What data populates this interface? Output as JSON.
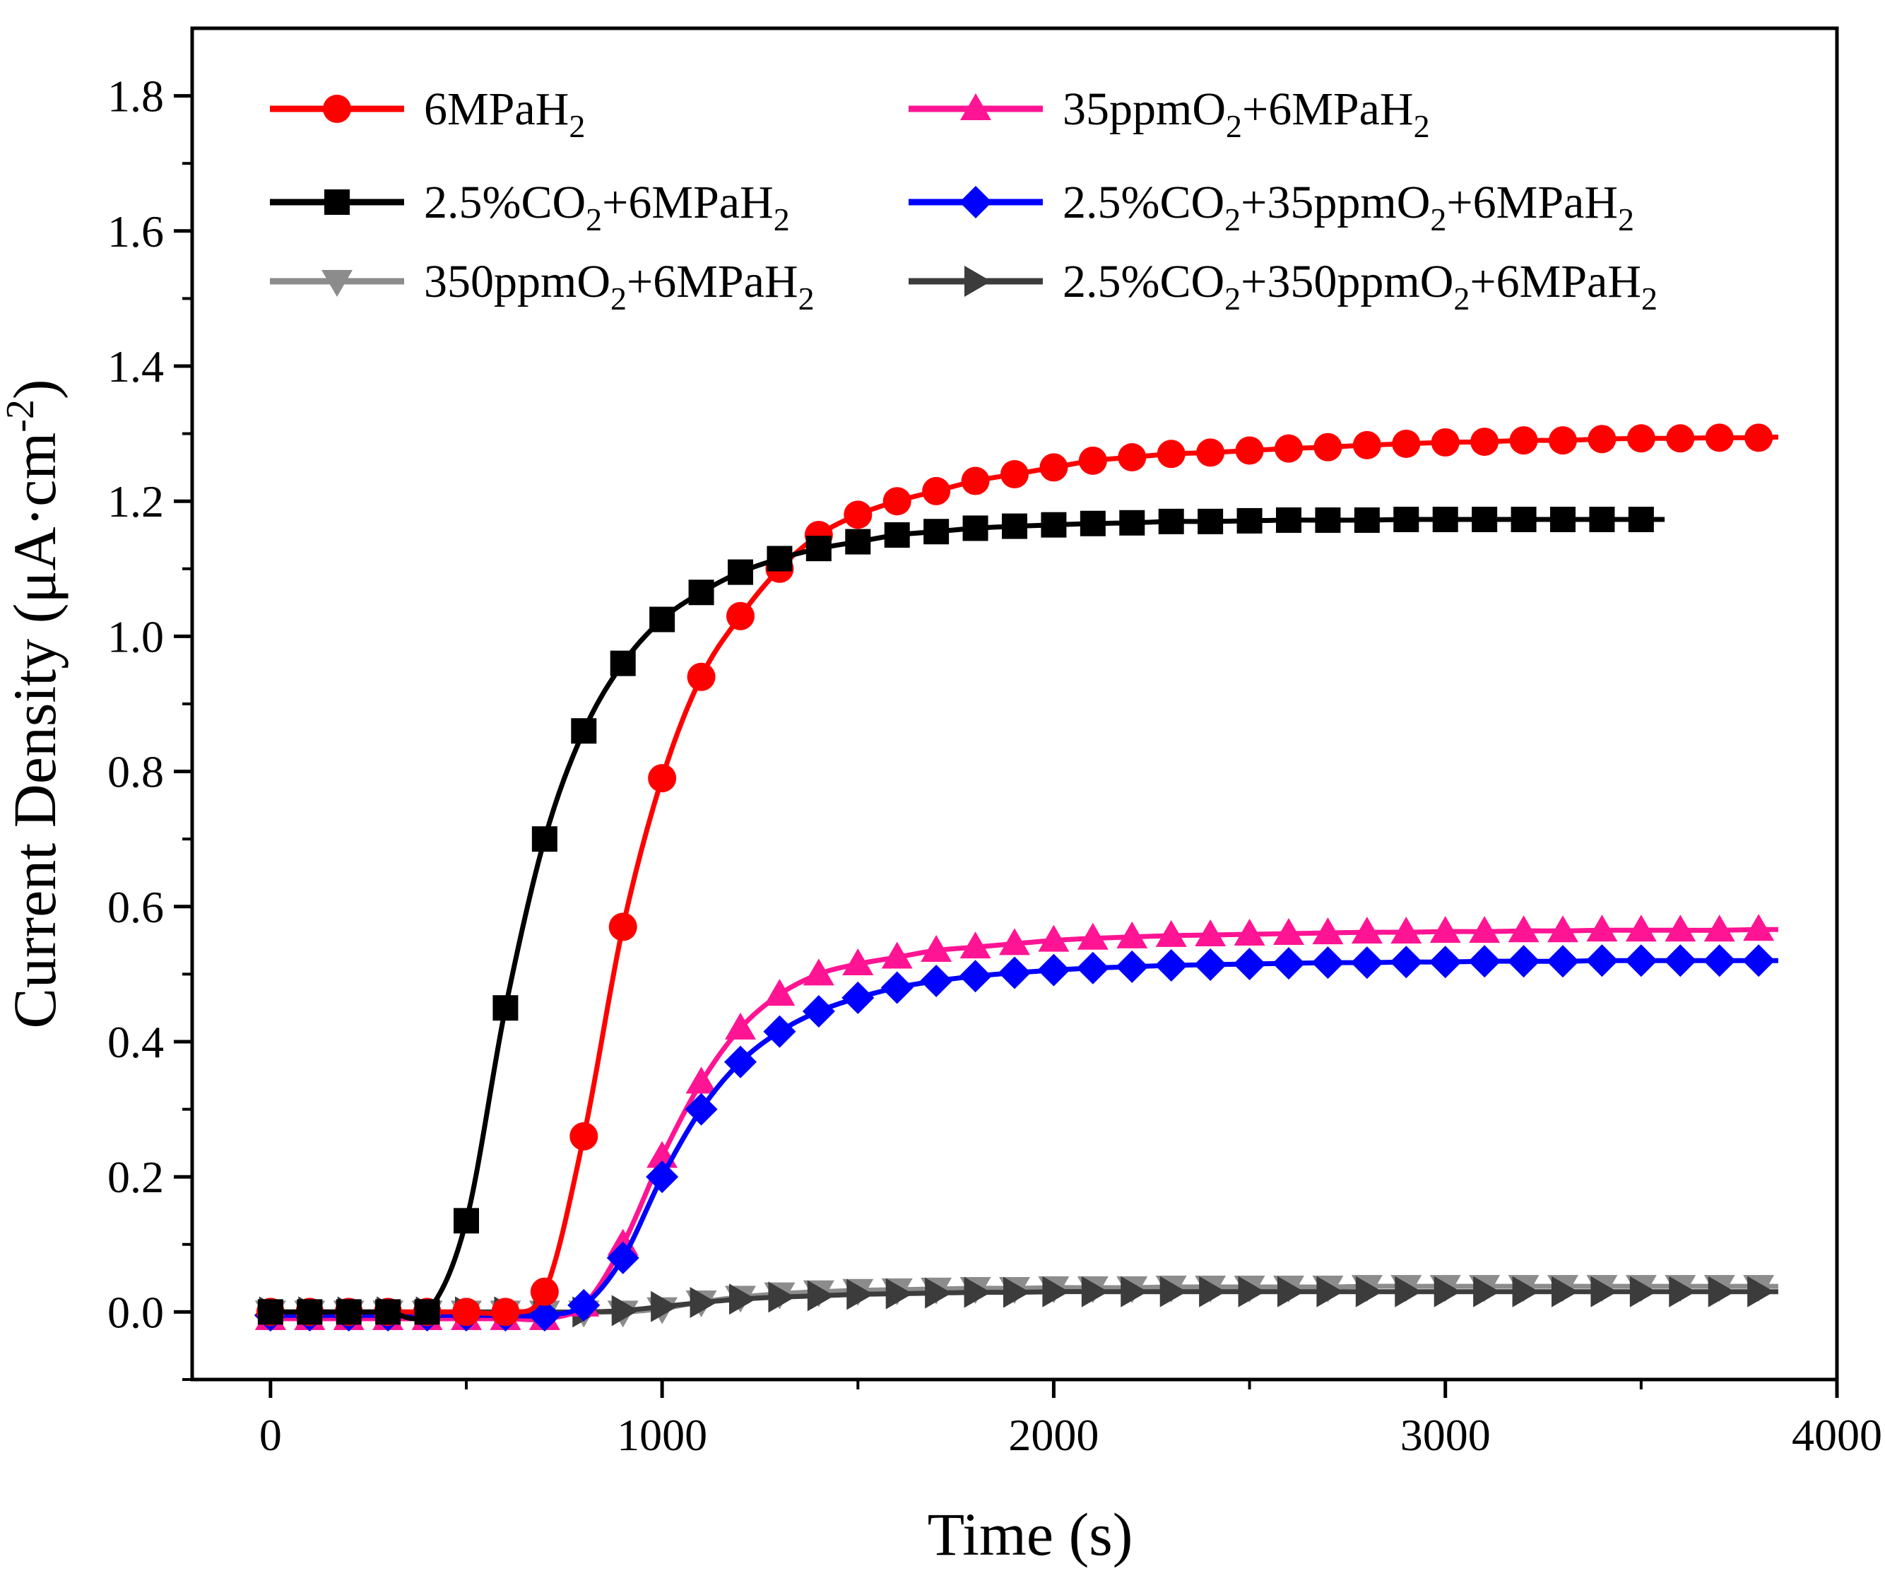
{
  "chart_data": {
    "type": "line",
    "xlabel": "Time (s)",
    "ylabel": "Current Density (μA·cm",
    "ylabel_sup": "-2",
    "ylabel_close": ")",
    "xlim": [
      -200,
      4000
    ],
    "ylim": [
      -0.1,
      1.9
    ],
    "xticks": [
      0,
      1000,
      2000,
      3000,
      4000
    ],
    "xtick_labels": [
      "0",
      "1000",
      "2000",
      "3000",
      "4000"
    ],
    "yticks": [
      0.0,
      0.2,
      0.4,
      0.6,
      0.8,
      1.0,
      1.2,
      1.4,
      1.6,
      1.8
    ],
    "ytick_labels": [
      "0.0",
      "0.2",
      "0.4",
      "0.6",
      "0.8",
      "1.0",
      "1.2",
      "1.4",
      "1.6",
      "1.8"
    ],
    "grid": false,
    "legend_position": "top-left",
    "series": [
      {
        "name": "6MPaH2",
        "label_parts": [
          [
            "6MPaH",
            ""
          ],
          [
            "2",
            "sub"
          ]
        ],
        "color": "#ff0000",
        "marker": "circle",
        "x": [
          0,
          100,
          200,
          300,
          400,
          500,
          600,
          700,
          800,
          900,
          1000,
          1100,
          1200,
          1300,
          1400,
          1500,
          1600,
          1700,
          1800,
          1900,
          2000,
          2100,
          2200,
          2300,
          2400,
          2500,
          2600,
          2700,
          2800,
          2900,
          3000,
          3100,
          3200,
          3300,
          3400,
          3500,
          3600,
          3700,
          3800,
          3850
        ],
        "y": [
          0,
          0,
          0,
          0,
          0,
          0,
          0,
          0.03,
          0.26,
          0.57,
          0.79,
          0.94,
          1.03,
          1.1,
          1.15,
          1.18,
          1.2,
          1.215,
          1.23,
          1.24,
          1.25,
          1.26,
          1.265,
          1.27,
          1.272,
          1.275,
          1.278,
          1.28,
          1.283,
          1.285,
          1.287,
          1.288,
          1.29,
          1.29,
          1.292,
          1.293,
          1.293,
          1.294,
          1.294,
          1.295
        ]
      },
      {
        "name": "35ppmO2+6MPaH2",
        "label_parts": [
          [
            "35ppmO",
            ""
          ],
          [
            "2",
            "sub"
          ],
          [
            "+6MPaH",
            ""
          ],
          [
            "2",
            "sub"
          ]
        ],
        "color": "#ff1493",
        "marker": "triangle-up",
        "x": [
          0,
          100,
          200,
          300,
          400,
          500,
          600,
          700,
          800,
          900,
          1000,
          1100,
          1200,
          1300,
          1400,
          1500,
          1600,
          1700,
          1800,
          1900,
          2000,
          2100,
          2200,
          2300,
          2400,
          2500,
          2600,
          2700,
          2800,
          2900,
          3000,
          3100,
          3200,
          3300,
          3400,
          3500,
          3600,
          3700,
          3800,
          3850
        ],
        "y": [
          -0.01,
          -0.01,
          -0.01,
          -0.01,
          -0.01,
          -0.01,
          -0.01,
          -0.01,
          0.01,
          0.1,
          0.23,
          0.34,
          0.42,
          0.47,
          0.5,
          0.515,
          0.525,
          0.535,
          0.54,
          0.545,
          0.55,
          0.553,
          0.555,
          0.557,
          0.558,
          0.559,
          0.56,
          0.561,
          0.562,
          0.562,
          0.563,
          0.563,
          0.564,
          0.564,
          0.565,
          0.565,
          0.565,
          0.565,
          0.566,
          0.566
        ]
      },
      {
        "name": "2.5%CO2+6MPaH2",
        "label_parts": [
          [
            "2.5%CO",
            ""
          ],
          [
            "2",
            "sub"
          ],
          [
            "+6MPaH",
            ""
          ],
          [
            "2",
            "sub"
          ]
        ],
        "color": "#000000",
        "marker": "square",
        "x": [
          0,
          100,
          200,
          300,
          400,
          500,
          600,
          700,
          800,
          900,
          1000,
          1100,
          1200,
          1300,
          1400,
          1500,
          1600,
          1700,
          1800,
          1900,
          2000,
          2100,
          2200,
          2300,
          2400,
          2500,
          2600,
          2700,
          2800,
          2900,
          3000,
          3100,
          3200,
          3300,
          3400,
          3500,
          3560
        ],
        "y": [
          0,
          0,
          0,
          0,
          0,
          0.135,
          0.45,
          0.7,
          0.86,
          0.96,
          1.025,
          1.065,
          1.095,
          1.115,
          1.13,
          1.14,
          1.15,
          1.155,
          1.16,
          1.163,
          1.165,
          1.167,
          1.168,
          1.17,
          1.17,
          1.171,
          1.172,
          1.172,
          1.172,
          1.173,
          1.173,
          1.173,
          1.173,
          1.173,
          1.173,
          1.173,
          1.173
        ]
      },
      {
        "name": "2.5%CO2+35ppmO2+6MPaH2",
        "label_parts": [
          [
            "2.5%CO",
            ""
          ],
          [
            "2",
            "sub"
          ],
          [
            "+35ppmO",
            ""
          ],
          [
            "2",
            "sub"
          ],
          [
            "+6MPaH",
            ""
          ],
          [
            "2",
            "sub"
          ]
        ],
        "color": "#0000ff",
        "marker": "diamond",
        "x": [
          0,
          100,
          200,
          300,
          400,
          500,
          600,
          700,
          800,
          900,
          1000,
          1100,
          1200,
          1300,
          1400,
          1500,
          1600,
          1700,
          1800,
          1900,
          2000,
          2100,
          2200,
          2300,
          2400,
          2500,
          2600,
          2700,
          2800,
          2900,
          3000,
          3100,
          3200,
          3300,
          3400,
          3500,
          3600,
          3700,
          3800,
          3850
        ],
        "y": [
          -0.005,
          -0.005,
          -0.005,
          -0.005,
          -0.005,
          -0.005,
          -0.005,
          -0.005,
          0.01,
          0.08,
          0.2,
          0.3,
          0.37,
          0.415,
          0.445,
          0.465,
          0.48,
          0.49,
          0.497,
          0.502,
          0.506,
          0.509,
          0.511,
          0.513,
          0.514,
          0.515,
          0.516,
          0.517,
          0.517,
          0.518,
          0.518,
          0.519,
          0.519,
          0.519,
          0.52,
          0.52,
          0.52,
          0.52,
          0.52,
          0.52
        ]
      },
      {
        "name": "350ppmO2+6MPaH2",
        "label_parts": [
          [
            "350ppmO",
            ""
          ],
          [
            "2",
            "sub"
          ],
          [
            "+6MPaH",
            ""
          ],
          [
            "2",
            "sub"
          ]
        ],
        "color": "#8c8c8c",
        "marker": "triangle-down",
        "x": [
          0,
          100,
          200,
          300,
          400,
          500,
          600,
          700,
          800,
          900,
          1000,
          1100,
          1200,
          1300,
          1400,
          1500,
          1600,
          1700,
          1800,
          1900,
          2000,
          2100,
          2200,
          2300,
          2400,
          2500,
          2600,
          2700,
          2800,
          2900,
          3000,
          3100,
          3200,
          3300,
          3400,
          3500,
          3600,
          3700,
          3800,
          3850
        ],
        "y": [
          0,
          0,
          0,
          0,
          0,
          0,
          0,
          0,
          0,
          0,
          0.005,
          0.015,
          0.022,
          0.027,
          0.03,
          0.032,
          0.033,
          0.034,
          0.035,
          0.035,
          0.036,
          0.036,
          0.036,
          0.037,
          0.037,
          0.037,
          0.037,
          0.037,
          0.038,
          0.038,
          0.038,
          0.038,
          0.038,
          0.038,
          0.038,
          0.038,
          0.038,
          0.038,
          0.038,
          0.038
        ]
      },
      {
        "name": "2.5%CO2+350ppmO2+6MPaH2",
        "label_parts": [
          [
            "2.5%CO",
            ""
          ],
          [
            "2",
            "sub"
          ],
          [
            "+350ppmO",
            ""
          ],
          [
            "2",
            "sub"
          ],
          [
            "+6MPaH",
            ""
          ],
          [
            "2",
            "sub"
          ]
        ],
        "color": "#3c3c3c",
        "marker": "triangle-right",
        "x": [
          0,
          100,
          200,
          300,
          400,
          500,
          600,
          700,
          800,
          900,
          1000,
          1100,
          1200,
          1300,
          1400,
          1500,
          1600,
          1700,
          1800,
          1900,
          2000,
          2100,
          2200,
          2300,
          2400,
          2500,
          2600,
          2700,
          2800,
          2900,
          3000,
          3100,
          3200,
          3300,
          3400,
          3500,
          3600,
          3700,
          3800,
          3850
        ],
        "y": [
          0,
          0,
          0,
          0,
          0,
          0,
          0,
          0,
          0,
          0.002,
          0.008,
          0.014,
          0.019,
          0.022,
          0.024,
          0.026,
          0.027,
          0.028,
          0.029,
          0.029,
          0.03,
          0.03,
          0.03,
          0.03,
          0.03,
          0.03,
          0.03,
          0.03,
          0.03,
          0.03,
          0.03,
          0.03,
          0.03,
          0.03,
          0.03,
          0.03,
          0.03,
          0.03,
          0.03,
          0.03
        ]
      }
    ]
  }
}
